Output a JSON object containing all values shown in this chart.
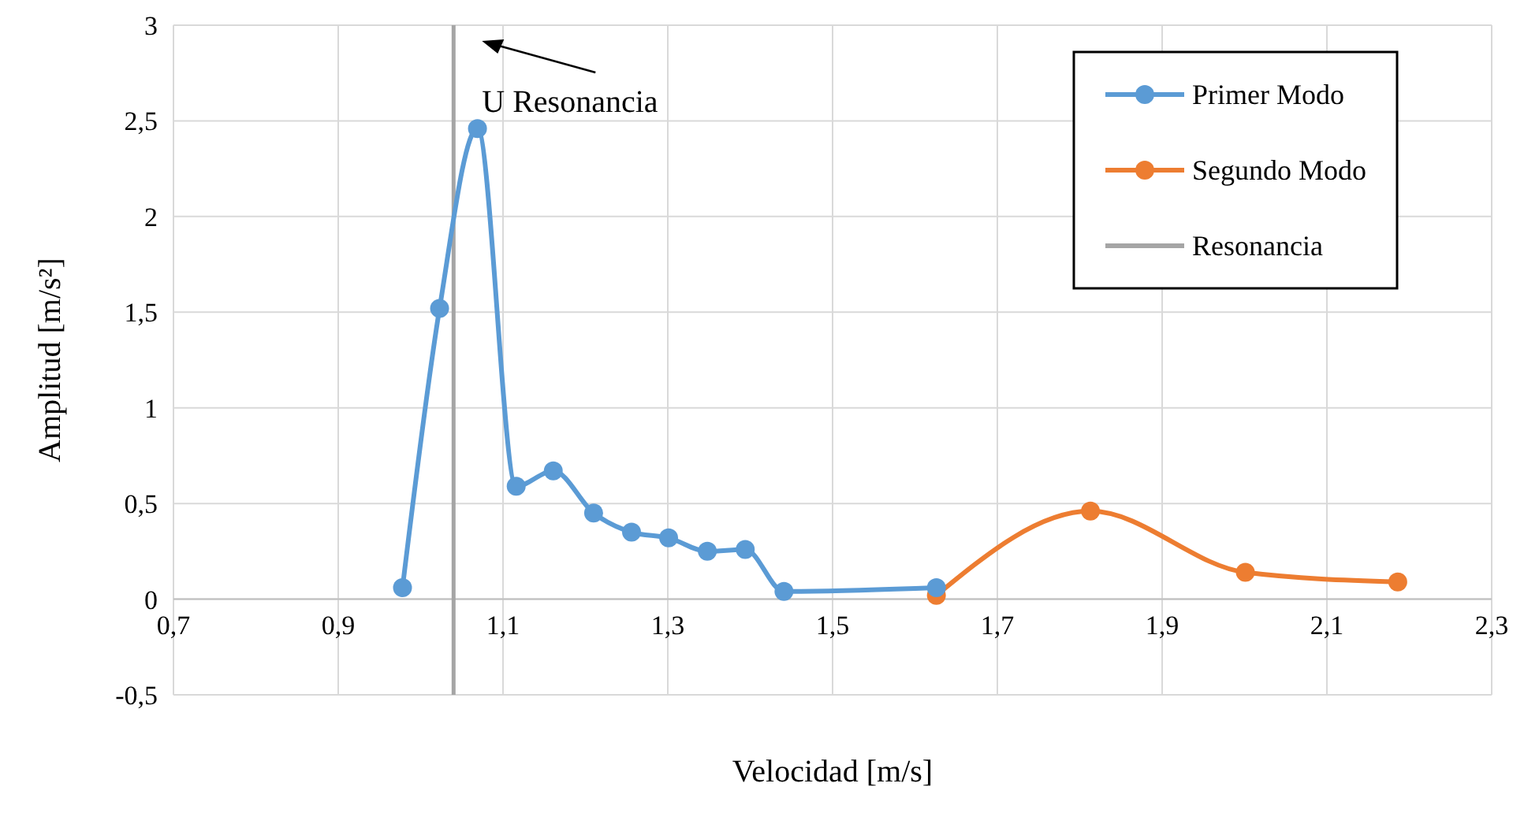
{
  "chart_data": {
    "type": "line",
    "xlabel": "Velocidad [m/s]",
    "ylabel": "Amplitud [m/s²]",
    "xlim": [
      0.7,
      2.3
    ],
    "xticks": [
      {
        "value": 0.7,
        "label": "0,7"
      },
      {
        "value": 0.9,
        "label": "0,9"
      },
      {
        "value": 1.1,
        "label": "1,1"
      },
      {
        "value": 1.3,
        "label": "1,3"
      },
      {
        "value": 1.5,
        "label": "1,5"
      },
      {
        "value": 1.7,
        "label": "1,7"
      },
      {
        "value": 1.9,
        "label": "1,9"
      },
      {
        "value": 2.1,
        "label": "2,1"
      },
      {
        "value": 2.3,
        "label": "2,3"
      }
    ],
    "ylim": [
      -0.5,
      3
    ],
    "yticks": [
      {
        "value": -0.5,
        "label": "-0,5"
      },
      0,
      {
        "value": 0.5,
        "label": "0,5"
      },
      1,
      {
        "value": 1.5,
        "label": "1,5"
      },
      2,
      {
        "value": 2.5,
        "label": "2,5"
      },
      3
    ],
    "grid": true,
    "legend": "top right",
    "marker": "circle",
    "series": [
      {
        "name": "Primer Modo",
        "color": "#5b9bd5",
        "x": [
          0.978,
          1.023,
          1.069,
          1.116,
          1.161,
          1.21,
          1.256,
          1.301,
          1.348,
          1.394,
          1.441,
          1.626
        ],
        "values": [
          0.06,
          1.52,
          2.46,
          0.59,
          0.67,
          0.45,
          0.35,
          0.32,
          0.25,
          0.26,
          0.04,
          0.06
        ]
      },
      {
        "name": "Segundo Modo",
        "color": "#ed7d31",
        "x": [
          1.626,
          1.813,
          2.001,
          2.186
        ],
        "values": [
          0.02,
          0.46,
          0.14,
          0.09
        ]
      },
      {
        "name": "Resonancia",
        "color": "#a5a5a5",
        "marker": "none",
        "x": [
          1.04,
          1.04
        ],
        "values": [
          -0.5,
          3
        ]
      }
    ],
    "annotations": [
      {
        "text": "U Resonancia",
        "x": 1.04,
        "y": 3
      }
    ]
  }
}
